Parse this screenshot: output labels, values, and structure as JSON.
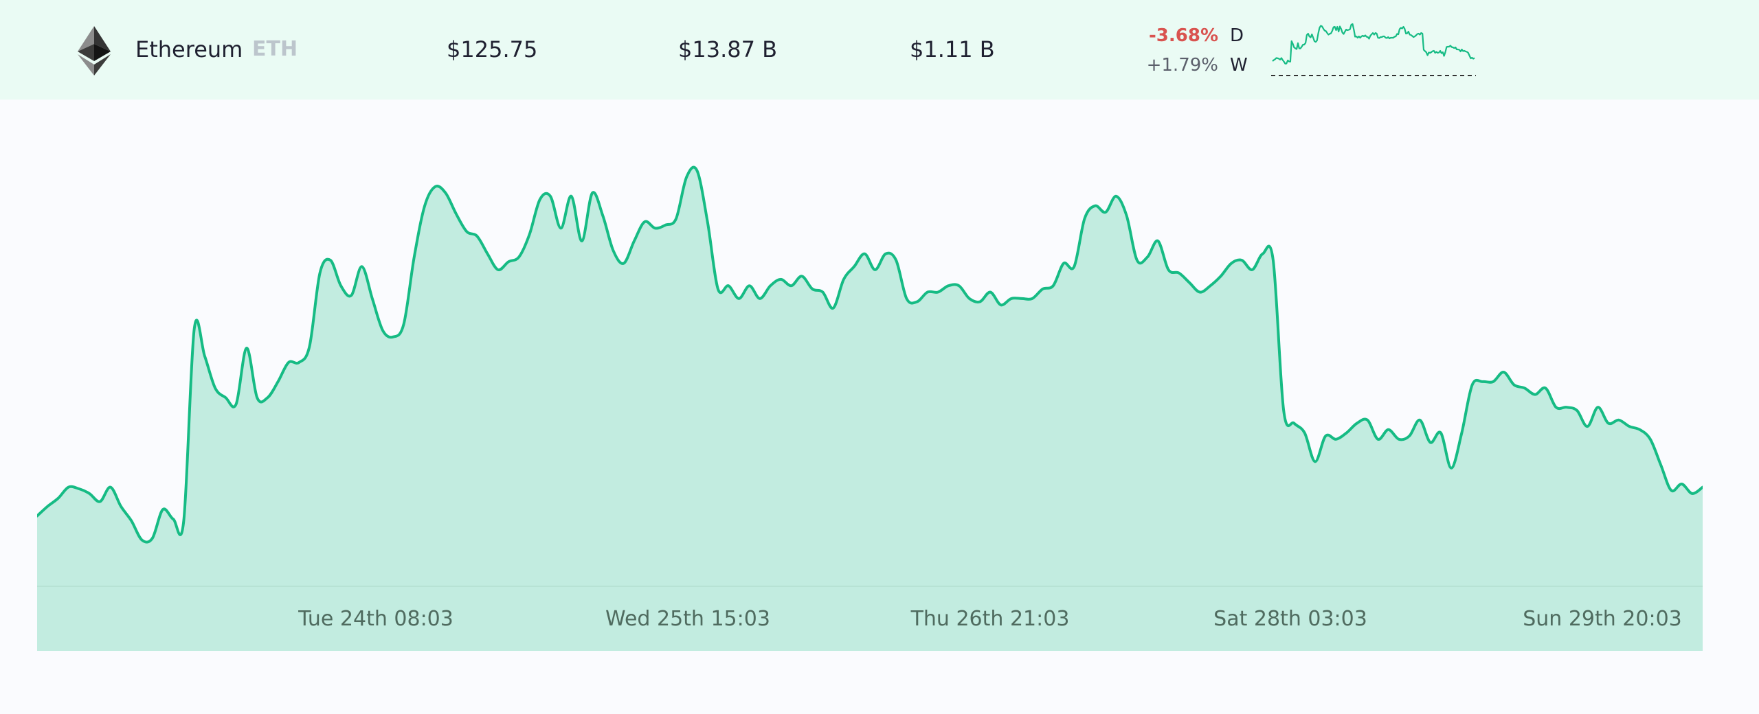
{
  "coin": {
    "name": "Ethereum",
    "symbol": "ETH",
    "logo_icon": "ethereum-logo-icon",
    "price": "$125.75",
    "market_cap": "$13.87 B",
    "volume": "$1.11 B",
    "change_day": "-3.68%",
    "change_day_label": "D",
    "change_week": "+1.79%",
    "change_week_label": "W"
  },
  "colors": {
    "row_background": "#eafbf4",
    "line": "#16bb84",
    "area_fill": "#c2ece0",
    "negative": "#d9534f",
    "page_background": "#fafbfe"
  },
  "chart_data": {
    "type": "area",
    "title": "",
    "xlabel": "",
    "ylabel": "",
    "x_tick_labels": [
      "Tue 24th 08:03",
      "Wed 25th 15:03",
      "Thu 26th 21:03",
      "Sat 28th 03:03",
      "Sun 29th 20:03"
    ],
    "grid": false,
    "legend": "none",
    "series": [
      {
        "values": [
          22,
          25,
          27.5,
          31,
          30.5,
          29,
          26.5,
          31,
          25,
          20.5,
          14.5,
          15,
          24,
          21,
          20.5,
          80.5,
          72,
          62,
          59,
          57,
          74.5,
          59,
          59,
          64,
          70,
          70,
          75,
          98,
          102,
          94,
          91,
          100,
          90,
          80,
          78,
          82,
          103,
          119,
          125,
          123,
          116.5,
          111,
          109.5,
          104,
          99,
          101.5,
          103,
          110,
          121,
          122,
          112,
          122,
          108,
          123,
          116,
          105,
          101,
          108,
          114,
          112,
          113,
          115,
          128,
          130,
          114,
          93,
          94,
          90,
          94,
          90,
          94,
          96,
          94,
          97,
          93,
          92,
          87,
          96,
          100,
          104,
          99,
          104,
          102,
          90,
          89,
          92,
          92,
          94,
          94,
          90,
          89,
          92,
          88,
          90,
          90,
          90,
          93,
          94,
          101,
          100,
          115,
          119,
          117,
          122,
          116,
          102,
          103,
          108,
          99,
          98,
          95,
          92,
          94,
          97,
          101,
          102,
          99,
          104,
          102,
          55,
          51,
          48,
          39,
          47,
          46,
          48,
          51,
          52,
          46,
          49,
          46,
          47,
          52,
          45,
          48,
          37,
          48,
          63,
          64,
          64,
          67,
          63,
          62,
          60,
          62,
          56,
          56,
          55,
          50,
          56,
          51,
          52,
          50,
          49,
          46,
          38,
          30,
          32,
          29,
          31
        ]
      }
    ]
  }
}
